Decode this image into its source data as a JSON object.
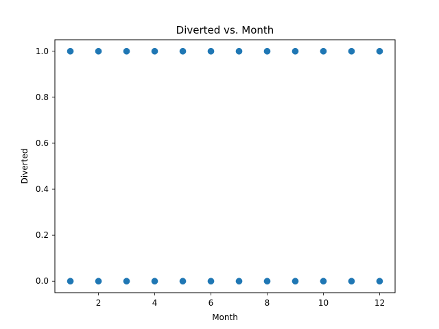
{
  "chart_data": {
    "type": "scatter",
    "title": "Diverted vs. Month",
    "xlabel": "Month",
    "ylabel": "Diverted",
    "xlim": [
      0.45,
      12.55
    ],
    "ylim": [
      -0.05,
      1.05
    ],
    "x_ticks": [
      2,
      4,
      6,
      8,
      10,
      12
    ],
    "x_tick_labels": [
      "2",
      "4",
      "6",
      "8",
      "10",
      "12"
    ],
    "y_ticks": [
      0.0,
      0.2,
      0.4,
      0.6,
      0.8,
      1.0
    ],
    "y_tick_labels": [
      "0.0",
      "0.2",
      "0.4",
      "0.6",
      "0.8",
      "1.0"
    ],
    "grid": false,
    "marker_color": "#1f77b4",
    "points": [
      {
        "x": 1,
        "y": 0
      },
      {
        "x": 1,
        "y": 1
      },
      {
        "x": 2,
        "y": 0
      },
      {
        "x": 2,
        "y": 1
      },
      {
        "x": 3,
        "y": 0
      },
      {
        "x": 3,
        "y": 1
      },
      {
        "x": 4,
        "y": 0
      },
      {
        "x": 4,
        "y": 1
      },
      {
        "x": 5,
        "y": 0
      },
      {
        "x": 5,
        "y": 1
      },
      {
        "x": 6,
        "y": 0
      },
      {
        "x": 6,
        "y": 1
      },
      {
        "x": 7,
        "y": 0
      },
      {
        "x": 7,
        "y": 1
      },
      {
        "x": 8,
        "y": 0
      },
      {
        "x": 8,
        "y": 1
      },
      {
        "x": 9,
        "y": 0
      },
      {
        "x": 9,
        "y": 1
      },
      {
        "x": 10,
        "y": 0
      },
      {
        "x": 10,
        "y": 1
      },
      {
        "x": 11,
        "y": 0
      },
      {
        "x": 11,
        "y": 1
      },
      {
        "x": 12,
        "y": 0
      },
      {
        "x": 12,
        "y": 1
      }
    ]
  }
}
